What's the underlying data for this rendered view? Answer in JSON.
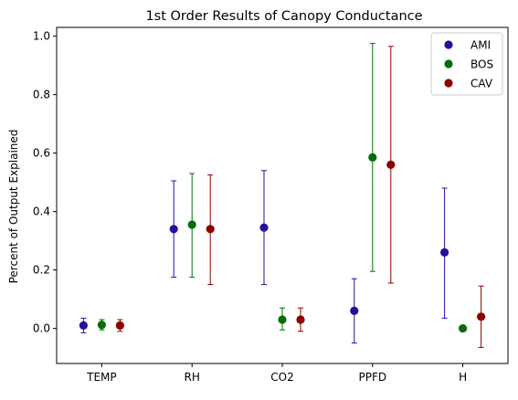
{
  "chart_data": {
    "type": "scatter",
    "title": "1st Order Results of Canopy Conductance",
    "xlabel": "",
    "ylabel": "Percent of Output Explained",
    "categories": [
      "TEMP",
      "RH",
      "CO2",
      "PPFD",
      "H"
    ],
    "ylim": [
      -0.12,
      1.03
    ],
    "yticks": [
      "0.0",
      "0.2",
      "0.4",
      "0.6",
      "0.8",
      "1.0"
    ],
    "grid": false,
    "legend_position": "top-right",
    "series": [
      {
        "name": "AMI",
        "color": "#2a0e9a",
        "values": [
          0.01,
          0.34,
          0.345,
          0.06,
          0.26
        ],
        "err_low": [
          -0.015,
          0.175,
          0.15,
          -0.05,
          0.035
        ],
        "err_high": [
          0.035,
          0.505,
          0.54,
          0.17,
          0.48
        ]
      },
      {
        "name": "BOS",
        "color": "#0a6b0a",
        "values": [
          0.012,
          0.355,
          0.03,
          0.585,
          0.0
        ],
        "err_low": [
          -0.005,
          0.175,
          -0.005,
          0.195,
          0.0
        ],
        "err_high": [
          0.03,
          0.53,
          0.07,
          0.975,
          0.0
        ]
      },
      {
        "name": "CAV",
        "color": "#8b0000",
        "values": [
          0.01,
          0.34,
          0.03,
          0.56,
          0.04
        ],
        "err_low": [
          -0.01,
          0.15,
          -0.01,
          0.155,
          -0.065
        ],
        "err_high": [
          0.03,
          0.525,
          0.07,
          0.965,
          0.145
        ]
      }
    ]
  }
}
